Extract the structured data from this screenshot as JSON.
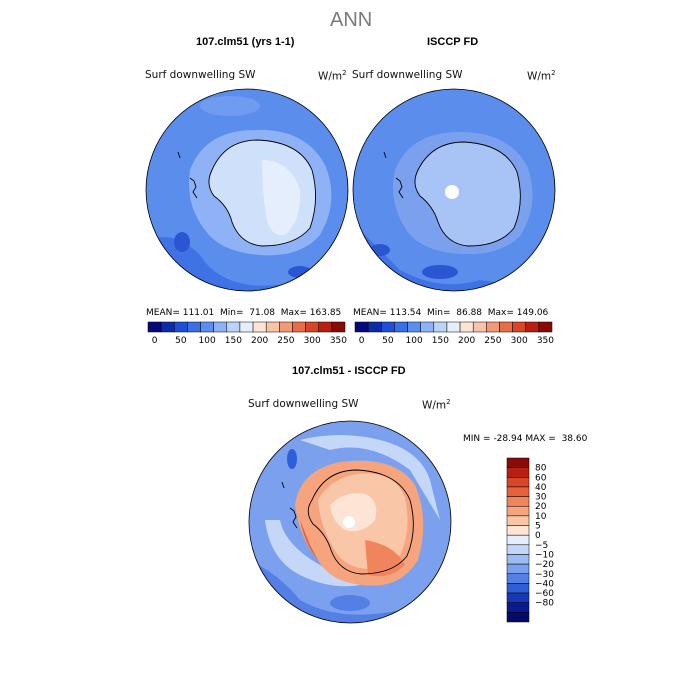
{
  "figure": {
    "title": "ANN",
    "units_text": "W/m",
    "units_sup": "2"
  },
  "top_left": {
    "subtitle": "107.clm51 (yrs 1-1)",
    "variable": "Surf downwelling SW",
    "mean_label": "MEAN=",
    "mean": "111.01",
    "min_label": "Min=",
    "min": "71.08",
    "max_label": "Max=",
    "max": "163.85"
  },
  "top_right": {
    "subtitle": "ISCCP FD",
    "variable": "Surf downwelling SW",
    "mean_label": "MEAN=",
    "mean": "113.54",
    "min_label": "Min=",
    "min": "86.88",
    "max_label": "Max=",
    "max": "149.06"
  },
  "abs_colorbar": {
    "colors": [
      "#08087a",
      "#0d2aa8",
      "#1f4fd6",
      "#3b6fe6",
      "#5a8ff0",
      "#8fb2f6",
      "#bcd3f8",
      "#e4eefc",
      "#fde4d4",
      "#f7c4a8",
      "#f09a76",
      "#e86e4a",
      "#d84628",
      "#b81e12",
      "#8a0a06"
    ],
    "labels": [
      "0",
      "50",
      "100",
      "150",
      "200",
      "250",
      "300",
      "350"
    ]
  },
  "diff": {
    "subtitle": "107.clm51 - ISCCP FD",
    "variable": "Surf downwelling SW",
    "min_label": "MIN =",
    "min": "-28.94",
    "max_label": "MAX =",
    "max": "38.60"
  },
  "diff_colorbar": {
    "colors": [
      "#8a0a06",
      "#b81e12",
      "#d84628",
      "#e8613e",
      "#f0845c",
      "#f5a47e",
      "#f9c6a8",
      "#fde4d4",
      "#e6eefc",
      "#c4d7f8",
      "#9dbcf4",
      "#7aa0ee",
      "#5480e6",
      "#2f5ed9",
      "#1838b8",
      "#0b1a8f",
      "#050a6a"
    ],
    "labels": [
      "80",
      "60",
      "40",
      "30",
      "20",
      "10",
      "5",
      "0",
      "−5",
      "−10",
      "−20",
      "−30",
      "−40",
      "−60",
      "−80"
    ]
  }
}
